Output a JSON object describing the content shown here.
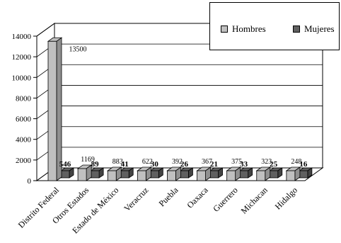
{
  "chart_data": {
    "type": "bar",
    "categories": [
      "Distrito Federal",
      "Otros Estados",
      "Estado de México",
      "Veracruz",
      "Puebla",
      "Oaxaca",
      "Guerrero",
      "Michacan",
      "Hidalgo"
    ],
    "series": [
      {
        "name": "Hombres",
        "values": [
          13500,
          1169,
          883,
          622,
          392,
          367,
          375,
          323,
          248
        ],
        "color": "#c0c0c0"
      },
      {
        "name": "Mujeres",
        "values": [
          546,
          89,
          41,
          30,
          26,
          21,
          33,
          25,
          16
        ],
        "color": "#606060"
      }
    ],
    "value_labels": {
      "Hombres": [
        "13500",
        "1169",
        "883",
        "622",
        "392",
        "367",
        "375",
        "323",
        "248"
      ],
      "Mujeres": [
        "546",
        "89",
        "41",
        "30",
        "26",
        "21",
        "33",
        "25",
        "16"
      ]
    },
    "y_ticks": [
      "0",
      "2000",
      "4000",
      "6000",
      "8000",
      "10000",
      "12000",
      "14000"
    ],
    "ylim": [
      0,
      14000
    ],
    "grid": true,
    "legend_position": "top-right",
    "style": "3d"
  }
}
